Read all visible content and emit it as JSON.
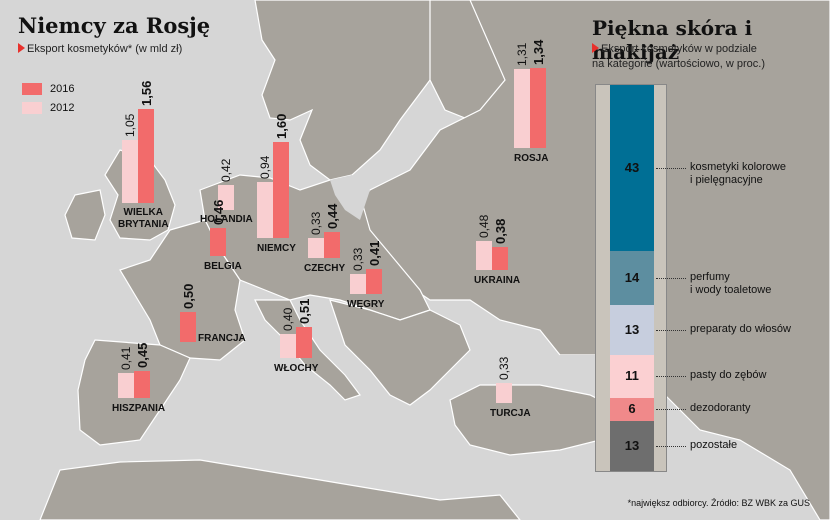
{
  "left_panel": {
    "title": "Niemcy za Rosję",
    "subtitle": "Eksport kosmetyków* (w mld zł)",
    "legend": [
      {
        "label": "2016",
        "color": "#f26b6b"
      },
      {
        "label": "2012",
        "color": "#f9cfd1"
      }
    ]
  },
  "right_panel": {
    "title": "Piękna skóra i makijaż",
    "subtitle_line1": "Eksport kosmetyków w podziale",
    "subtitle_line2": "na kategorie (wartościowo, w proc.)"
  },
  "footnote": "*największ odbiorcy. Źródło: BZ WBK za GUS",
  "chart_data": [
    {
      "type": "bar",
      "title": "Niemcy za Rosję",
      "subtitle": "Eksport kosmetyków* (w mld zł)",
      "series": [
        {
          "name": "2012"
        },
        {
          "name": "2016"
        }
      ],
      "countries": [
        {
          "name": "WIELKA BRYTANIA",
          "line1": "WIELKA",
          "line2": "BRYTANIA",
          "v2012": 1.05,
          "v2016": 1.56,
          "l2012": "1,05",
          "l2016": "1,56"
        },
        {
          "name": "HOLANDIA",
          "line1": "HOLANDIA",
          "line2": "",
          "v2012": 0.42,
          "v2016": null,
          "l2012": "0,42",
          "l2016": ""
        },
        {
          "name": "BELGIA",
          "line1": "BELGIA",
          "line2": "",
          "v2012": null,
          "v2016": 0.46,
          "l2012": "",
          "l2016": "0,46"
        },
        {
          "name": "NIEMCY",
          "line1": "NIEMCY",
          "line2": "",
          "v2012": 0.94,
          "v2016": 1.6,
          "l2012": "0,94",
          "l2016": "1,60"
        },
        {
          "name": "CZECHY",
          "line1": "CZECHY",
          "line2": "",
          "v2012": 0.33,
          "v2016": 0.44,
          "l2012": "0,33",
          "l2016": "0,44"
        },
        {
          "name": "WĘGRY",
          "line1": "WĘGRY",
          "line2": "",
          "v2012": 0.33,
          "v2016": 0.41,
          "l2012": "0,33",
          "l2016": "0,41"
        },
        {
          "name": "FRANCJA",
          "line1": "FRANCJA",
          "line2": "",
          "v2012": null,
          "v2016": 0.5,
          "l2012": "",
          "l2016": "0,50"
        },
        {
          "name": "WŁOCHY",
          "line1": "WŁOCHY",
          "line2": "",
          "v2012": 0.4,
          "v2016": 0.51,
          "l2012": "0,40",
          "l2016": "0,51"
        },
        {
          "name": "HISZPANIA",
          "line1": "HISZPANIA",
          "line2": "",
          "v2012": 0.41,
          "v2016": 0.45,
          "l2012": "0,41",
          "l2016": "0,45"
        },
        {
          "name": "UKRAINA",
          "line1": "UKRAINA",
          "line2": "",
          "v2012": 0.48,
          "v2016": 0.38,
          "l2012": "0,48",
          "l2016": "0,38"
        },
        {
          "name": "ROSJA",
          "line1": "ROSJA",
          "line2": "",
          "v2012": 1.31,
          "v2016": 1.34,
          "l2012": "1,31",
          "l2016": "1,34"
        },
        {
          "name": "TURCJA",
          "line1": "TURCJA",
          "line2": "",
          "v2012": 0.33,
          "v2016": null,
          "l2012": "0,33",
          "l2016": ""
        }
      ]
    },
    {
      "type": "bar",
      "title": "Piękna skóra i makijaż",
      "stacked": true,
      "categories": [
        {
          "line1": "kosmetyki kolorowe",
          "line2": "i pielęgnacyjne",
          "value": 43,
          "color": "#006f95"
        },
        {
          "line1": "perfumy",
          "line2": "i wody toaletowe",
          "value": 14,
          "color": "#5d8ea0"
        },
        {
          "line1": "preparaty do włosów",
          "line2": "",
          "value": 13,
          "color": "#c7cede"
        },
        {
          "line1": "pasty do zębów",
          "line2": "",
          "value": 11,
          "color": "#fbd0d2"
        },
        {
          "line1": "dezodoranty",
          "line2": "",
          "value": 6,
          "color": "#f0898a"
        },
        {
          "line1": "pozostałe",
          "line2": "",
          "value": 13,
          "color": "#6e6e6e"
        }
      ]
    }
  ]
}
